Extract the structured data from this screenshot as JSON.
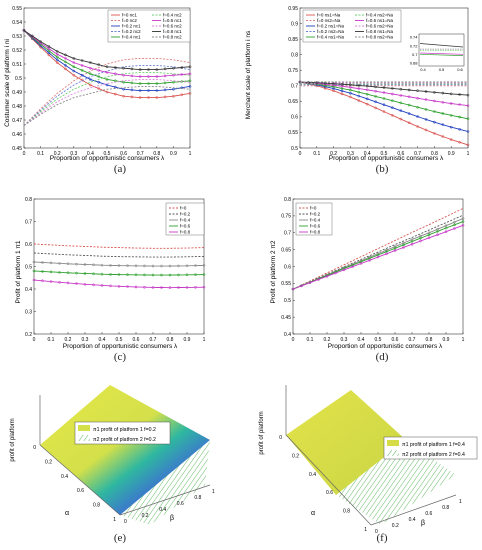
{
  "panels": {
    "a": {
      "caption": "(a)",
      "xlabel": "Proportion of opportunistic consumers λ",
      "ylabel": "Costumer scale of platform i ni",
      "xticks": [
        "0",
        "0.1",
        "0.2",
        "0.3",
        "0.4",
        "0.5",
        "0.6",
        "0.7",
        "0.8",
        "0.9",
        "1"
      ],
      "yticks": [
        "0.45",
        "0.46",
        "0.47",
        "0.48",
        "0.49",
        "0.5",
        "0.51",
        "0.52",
        "0.53",
        "0.54",
        "0.55"
      ],
      "legend": [
        "f=0 nc1",
        "f=0 nc2",
        "f=0.2 nc1",
        "f=0.2 nc2",
        "f=0.4 nc1",
        "f=0.4 nc2",
        "f=0.6 nc1",
        "f=0.6 nc2",
        "f=0.8 nc1",
        "f=0.8 nc2"
      ]
    },
    "b": {
      "caption": "(b)",
      "xlabel": "Proportion of opportunistic consumers λ",
      "ylabel": "Merchant scale of platform i ns",
      "xticks": [
        "0",
        "0.1",
        "0.2",
        "0.3",
        "0.4",
        "0.5",
        "0.6",
        "0.7",
        "0.8",
        "0.9",
        "1"
      ],
      "yticks": [
        "0.5",
        "0.55",
        "0.6",
        "0.65",
        "0.7",
        "0.75",
        "0.8",
        "0.85",
        "0.9",
        "0.95"
      ],
      "legend": [
        "f=0 ns1=Na",
        "f=0 ns2=Na",
        "f=0.2 ns1=Na",
        "f=0.2 ns2=Na",
        "f=0.4 ns1=Na",
        "f=0.4 ns2=Na",
        "f=0.6 ns1=Na",
        "f=0.6 ns2=Na",
        "f=0.8 ns1=Na",
        "f=0.8 ns2=Na"
      ],
      "inset_yticks": [
        "0.74",
        "0.72",
        "0.7",
        "0.68"
      ],
      "inset_xticks": [
        "0.4",
        "0.5",
        "0.6"
      ]
    },
    "c": {
      "caption": "(c)",
      "xlabel": "Proportion of opportunistic consumers λ",
      "ylabel": "Profit of platform 1 π1",
      "xticks": [
        "0",
        "0.1",
        "0.2",
        "0.3",
        "0.4",
        "0.5",
        "0.6",
        "0.7",
        "0.8",
        "0.9",
        "1"
      ],
      "yticks": [
        "0.2",
        "0.3",
        "0.4",
        "0.5",
        "0.6",
        "0.7",
        "0.8"
      ],
      "legend": [
        "f=0",
        "f=0.2",
        "f=0.4",
        "f=0.6",
        "f=0.8"
      ]
    },
    "d": {
      "caption": "(d)",
      "xlabel": "Proportion of opportunistic consumers λ",
      "ylabel": "Profit of platform 2 π2",
      "xticks": [
        "0",
        "0.1",
        "0.2",
        "0.3",
        "0.4",
        "0.5",
        "0.6",
        "0.7",
        "0.8",
        "0.9",
        "1"
      ],
      "yticks": [
        "0.4",
        "0.45",
        "0.5",
        "0.55",
        "0.6",
        "0.65",
        "0.7",
        "0.75",
        "0.8"
      ],
      "legend": [
        "f=0",
        "f=0.2",
        "f=0.4",
        "f=0.6",
        "f=0.8"
      ]
    },
    "e": {
      "caption": "(e)",
      "zlabel": "profit of platform",
      "alpha": "α",
      "beta": "β",
      "legend": [
        "π1 profit of platform 1 f=0.2",
        "π2 profit of platform 2 f=0.2"
      ],
      "ticks_left": [
        "0",
        "0.2",
        "0.4",
        "0.6",
        "0.8",
        "1"
      ],
      "ticks_right": [
        "0",
        "0.2",
        "0.4",
        "0.6",
        "0.8",
        "1"
      ]
    },
    "f": {
      "caption": "(f)",
      "zlabel": "profit of platform",
      "alpha": "α",
      "beta": "β",
      "legend": [
        "π1 profit of platform 1 f=0.4",
        "π2 profit of platform 2 f=0.4"
      ],
      "ticks_left": [
        "0",
        "0.2",
        "0.4",
        "0.6",
        "0.8",
        "1"
      ],
      "ticks_right": [
        "0",
        "0.2",
        "0.4",
        "0.6",
        "0.8",
        "1"
      ]
    }
  },
  "chart_data": [
    {
      "type": "line",
      "title": "",
      "xlabel": "Proportion of opportunistic consumers λ",
      "ylabel": "Costumer scale of platform i ni",
      "xlim": [
        0,
        1
      ],
      "ylim": [
        0.45,
        0.55
      ],
      "x": [
        0,
        0.1,
        0.2,
        0.3,
        0.4,
        0.5,
        0.6,
        0.7,
        0.8,
        0.9,
        1
      ],
      "legend": "top-right",
      "grid": false,
      "series": [
        {
          "name": "f=0 nc1",
          "color": "#d9534f",
          "values": [
            0.534,
            0.522,
            0.511,
            0.502,
            0.495,
            0.49,
            0.487,
            0.486,
            0.486,
            0.487,
            0.489
          ]
        },
        {
          "name": "f=0 nc2",
          "color": "#e07c7c",
          "dash": true,
          "values": [
            0.466,
            0.478,
            0.489,
            0.498,
            0.505,
            0.51,
            0.513,
            0.514,
            0.514,
            0.513,
            0.511
          ]
        },
        {
          "name": "f=0.2 nc1",
          "color": "#1f3fbf",
          "values": [
            0.534,
            0.523,
            0.513,
            0.505,
            0.499,
            0.495,
            0.492,
            0.491,
            0.491,
            0.492,
            0.494
          ]
        },
        {
          "name": "f=0.2 nc2",
          "color": "#6a7fd8",
          "dash": true,
          "values": [
            0.466,
            0.477,
            0.487,
            0.495,
            0.501,
            0.505,
            0.508,
            0.509,
            0.509,
            0.508,
            0.506
          ]
        },
        {
          "name": "f=0.4 nc1",
          "color": "#2ca02c",
          "values": [
            0.534,
            0.524,
            0.515,
            0.508,
            0.503,
            0.499,
            0.497,
            0.496,
            0.496,
            0.497,
            0.498
          ]
        },
        {
          "name": "f=0.4 nc2",
          "color": "#6ccf6c",
          "dash": true,
          "values": [
            0.466,
            0.476,
            0.485,
            0.492,
            0.497,
            0.501,
            0.503,
            0.504,
            0.504,
            0.503,
            0.502
          ]
        },
        {
          "name": "f=0.6 nc1",
          "color": "#c838c8",
          "values": [
            0.534,
            0.525,
            0.517,
            0.511,
            0.507,
            0.504,
            0.502,
            0.501,
            0.501,
            0.502,
            0.503
          ]
        },
        {
          "name": "f=0.6 nc2",
          "color": "#e08ae0",
          "dash": true,
          "values": [
            0.466,
            0.475,
            0.483,
            0.489,
            0.493,
            0.496,
            0.498,
            0.499,
            0.499,
            0.498,
            0.497
          ]
        },
        {
          "name": "f=0.8 nc1",
          "color": "#333333",
          "values": [
            0.534,
            0.526,
            0.519,
            0.514,
            0.511,
            0.508,
            0.507,
            0.506,
            0.506,
            0.507,
            0.508
          ]
        },
        {
          "name": "f=0.8 nc2",
          "color": "#888888",
          "dash": true,
          "values": [
            0.466,
            0.474,
            0.481,
            0.486,
            0.489,
            0.492,
            0.493,
            0.494,
            0.494,
            0.493,
            0.492
          ]
        }
      ]
    },
    {
      "type": "line",
      "title": "",
      "xlabel": "Proportion of opportunistic consumers λ",
      "ylabel": "Merchant scale of platform i ns",
      "xlim": [
        0,
        1
      ],
      "ylim": [
        0.5,
        0.95
      ],
      "x": [
        0,
        0.1,
        0.2,
        0.3,
        0.4,
        0.5,
        0.6,
        0.7,
        0.8,
        0.9,
        1
      ],
      "legend": "top",
      "grid": false,
      "series": [
        {
          "name": "f=0 ns1=Na",
          "color": "#d9534f",
          "values": [
            0.712,
            0.7,
            0.684,
            0.664,
            0.641,
            0.617,
            0.593,
            0.569,
            0.547,
            0.527,
            0.51
          ]
        },
        {
          "name": "f=0 ns2=Na",
          "color": "#e07c7c",
          "dash": true,
          "values": [
            0.7,
            0.7,
            0.7,
            0.7,
            0.7,
            0.7,
            0.7,
            0.7,
            0.7,
            0.7,
            0.7
          ]
        },
        {
          "name": "f=0.2 ns1=Na",
          "color": "#1f3fbf",
          "values": [
            0.712,
            0.703,
            0.691,
            0.676,
            0.658,
            0.639,
            0.62,
            0.601,
            0.583,
            0.567,
            0.553
          ]
        },
        {
          "name": "f=0.2 ns2=Na",
          "color": "#6a7fd8",
          "dash": true,
          "values": [
            0.703,
            0.703,
            0.703,
            0.703,
            0.703,
            0.703,
            0.703,
            0.703,
            0.703,
            0.703,
            0.703
          ]
        },
        {
          "name": "f=0.4 ns1=Na",
          "color": "#2ca02c",
          "values": [
            0.712,
            0.705,
            0.697,
            0.686,
            0.673,
            0.659,
            0.645,
            0.631,
            0.617,
            0.605,
            0.594
          ]
        },
        {
          "name": "f=0.4 ns2=Na",
          "color": "#6ccf6c",
          "dash": true,
          "values": [
            0.706,
            0.706,
            0.706,
            0.706,
            0.706,
            0.706,
            0.706,
            0.706,
            0.706,
            0.706,
            0.706
          ]
        },
        {
          "name": "f=0.6 ns1=Na",
          "color": "#c838c8",
          "values": [
            0.712,
            0.708,
            0.702,
            0.695,
            0.687,
            0.678,
            0.669,
            0.66,
            0.651,
            0.643,
            0.636
          ]
        },
        {
          "name": "f=0.6 ns2=Na",
          "color": "#e08ae0",
          "dash": true,
          "values": [
            0.709,
            0.709,
            0.709,
            0.709,
            0.709,
            0.709,
            0.709,
            0.709,
            0.709,
            0.709,
            0.709
          ]
        },
        {
          "name": "f=0.8 ns1=Na",
          "color": "#333333",
          "values": [
            0.712,
            0.71,
            0.707,
            0.703,
            0.699,
            0.694,
            0.689,
            0.684,
            0.679,
            0.674,
            0.67
          ]
        },
        {
          "name": "f=0.8 ns2=Na",
          "color": "#888888",
          "dash": true,
          "values": [
            0.712,
            0.712,
            0.712,
            0.712,
            0.712,
            0.712,
            0.712,
            0.712,
            0.712,
            0.712,
            0.712
          ]
        }
      ]
    },
    {
      "type": "line",
      "title": "",
      "xlabel": "Proportion of opportunistic consumers λ",
      "ylabel": "Profit of platform 1 π1",
      "xlim": [
        0,
        1
      ],
      "ylim": [
        0.2,
        0.8
      ],
      "x": [
        0,
        0.1,
        0.2,
        0.3,
        0.4,
        0.5,
        0.6,
        0.7,
        0.8,
        0.9,
        1
      ],
      "legend": "top-right",
      "grid": false,
      "series": [
        {
          "name": "f=0",
          "color": "#d9534f",
          "dash": true,
          "values": [
            0.6,
            0.596,
            0.592,
            0.589,
            0.586,
            0.584,
            0.582,
            0.581,
            0.581,
            0.582,
            0.584
          ]
        },
        {
          "name": "f=0.2",
          "color": "#555555",
          "dash": true,
          "values": [
            0.56,
            0.556,
            0.552,
            0.549,
            0.546,
            0.544,
            0.543,
            0.542,
            0.542,
            0.543,
            0.545
          ]
        },
        {
          "name": "f=0.4",
          "color": "#888888",
          "values": [
            0.52,
            0.516,
            0.512,
            0.509,
            0.506,
            0.504,
            0.503,
            0.502,
            0.502,
            0.503,
            0.505
          ]
        },
        {
          "name": "f=0.6",
          "color": "#2ca02c",
          "values": [
            0.48,
            0.476,
            0.472,
            0.469,
            0.466,
            0.464,
            0.463,
            0.462,
            0.462,
            0.463,
            0.464
          ]
        },
        {
          "name": "f=0.8",
          "color": "#c838c8",
          "values": [
            0.44,
            0.433,
            0.427,
            0.421,
            0.416,
            0.412,
            0.409,
            0.407,
            0.406,
            0.407,
            0.408
          ]
        }
      ]
    },
    {
      "type": "line",
      "title": "",
      "xlabel": "Proportion of opportunistic consumers λ",
      "ylabel": "Profit of platform 2 π2",
      "xlim": [
        0,
        1
      ],
      "ylim": [
        0.4,
        0.8
      ],
      "x": [
        0,
        0.1,
        0.2,
        0.3,
        0.4,
        0.5,
        0.6,
        0.7,
        0.8,
        0.9,
        1
      ],
      "legend": "top-left",
      "grid": false,
      "series": [
        {
          "name": "f=0",
          "color": "#d9534f",
          "dash": true,
          "values": [
            0.533,
            0.557,
            0.581,
            0.605,
            0.629,
            0.653,
            0.677,
            0.701,
            0.724,
            0.748,
            0.772
          ]
        },
        {
          "name": "f=0.2",
          "color": "#555555",
          "dash": true,
          "values": [
            0.533,
            0.555,
            0.577,
            0.599,
            0.621,
            0.643,
            0.665,
            0.686,
            0.708,
            0.73,
            0.752
          ]
        },
        {
          "name": "f=0.4",
          "color": "#888888",
          "values": [
            0.533,
            0.554,
            0.575,
            0.596,
            0.617,
            0.638,
            0.659,
            0.68,
            0.7,
            0.721,
            0.742
          ]
        },
        {
          "name": "f=0.6",
          "color": "#2ca02c",
          "values": [
            0.533,
            0.553,
            0.573,
            0.594,
            0.614,
            0.634,
            0.654,
            0.674,
            0.694,
            0.714,
            0.733
          ]
        },
        {
          "name": "f=0.8",
          "color": "#c838c8",
          "values": [
            0.533,
            0.552,
            0.571,
            0.59,
            0.609,
            0.628,
            0.647,
            0.666,
            0.685,
            0.703,
            0.722
          ]
        }
      ]
    }
  ]
}
